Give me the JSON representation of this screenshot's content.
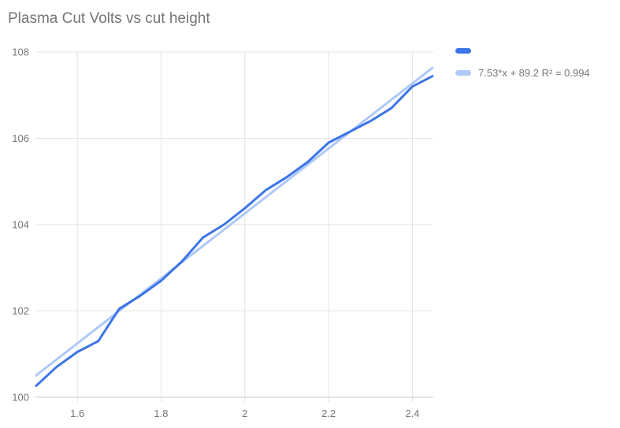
{
  "chart": {
    "title": "Plasma Cut Volts vs cut height",
    "legend": {
      "items": [
        {
          "label": "",
          "swatch_color": "#3d74e8"
        },
        {
          "label": "7.53*x + 89.2 R² = 0.994",
          "swatch_color": "#aec9f8"
        }
      ]
    },
    "colors": {
      "series": "#3d74e8",
      "trendline": "#aec9f8",
      "gridline": "#e3e3e3",
      "axis_line": "#c9c9c9",
      "text": "#757575",
      "background": "#ffffff"
    }
  },
  "chart_data": {
    "type": "line",
    "title": "Plasma Cut Volts vs cut height",
    "xlabel": "",
    "ylabel": "",
    "xlim": [
      1.5,
      2.45
    ],
    "ylim": [
      100,
      108
    ],
    "grid": true,
    "legend_position": "right",
    "x_ticks": {
      "values": [
        1.6,
        1.8,
        2.0,
        2.2,
        2.4
      ],
      "labels": [
        "1.6",
        "1.8",
        "2",
        "2.2",
        "2.4"
      ]
    },
    "y_ticks": {
      "values": [
        100,
        102,
        104,
        106,
        108
      ],
      "labels": [
        "100",
        "102",
        "104",
        "106",
        "108"
      ]
    },
    "series": [
      {
        "name": "",
        "color": "#3d74e8",
        "x": [
          1.5,
          1.55,
          1.6,
          1.65,
          1.7,
          1.75,
          1.8,
          1.85,
          1.9,
          1.95,
          2.0,
          2.05,
          2.1,
          2.15,
          2.2,
          2.25,
          2.3,
          2.35,
          2.4,
          2.45
        ],
        "y": [
          100.25,
          100.7,
          101.05,
          101.3,
          102.05,
          102.35,
          102.7,
          103.15,
          103.7,
          104.0,
          104.38,
          104.8,
          105.1,
          105.45,
          105.9,
          106.15,
          106.4,
          106.7,
          107.2,
          107.45
        ]
      },
      {
        "name": "7.53*x + 89.2 R² = 0.994",
        "kind": "trendline",
        "color": "#aec9f8",
        "slope": 7.53,
        "intercept": 89.2,
        "r2": 0.994,
        "x": [
          1.5,
          2.45
        ],
        "y": [
          100.495,
          107.649
        ]
      }
    ]
  }
}
